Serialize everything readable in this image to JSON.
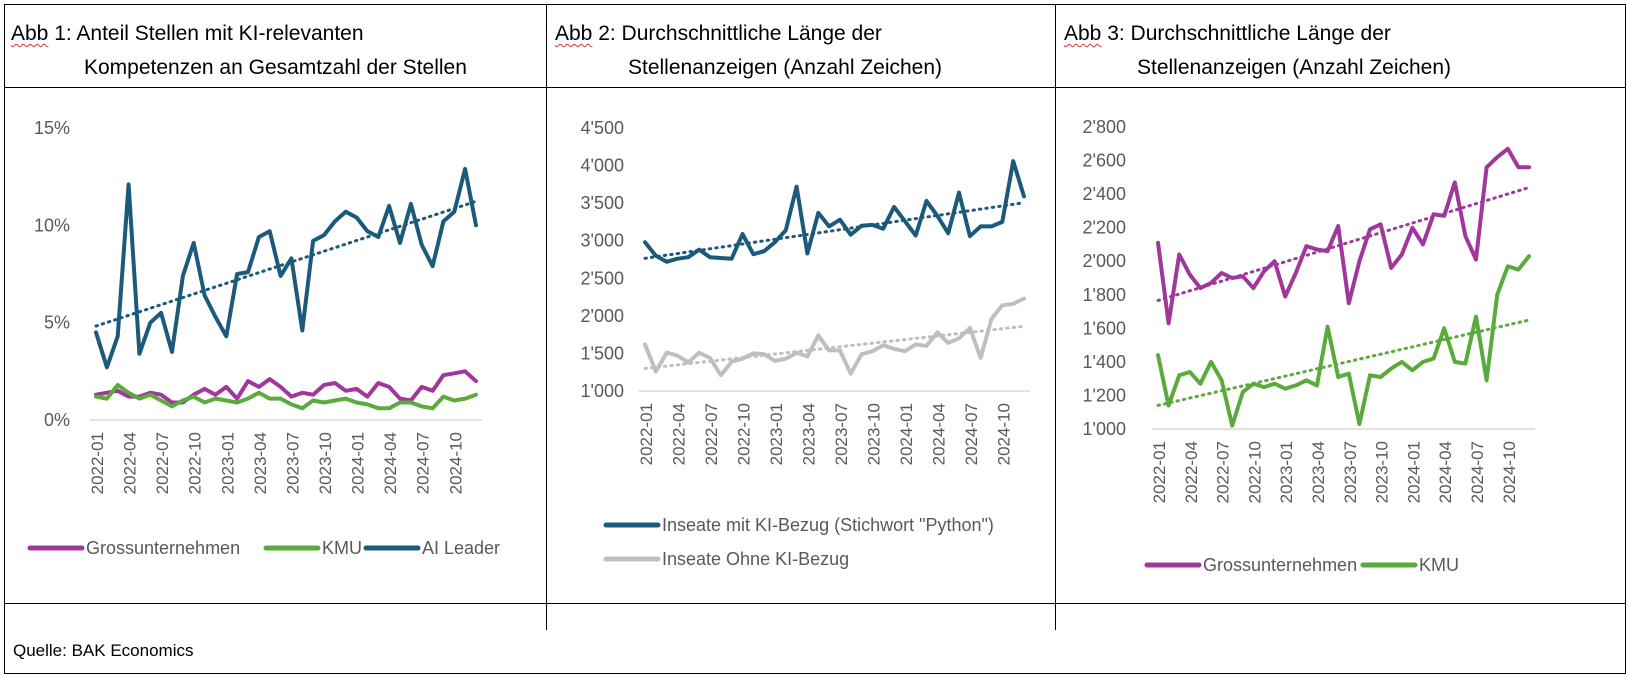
{
  "source": "Quelle: BAK Economics",
  "panels": [
    {
      "abb": "Abb",
      "title_rest_1": " 1: Anteil Stellen mit KI-relevanten",
      "title_line_2": "Kompetenzen an Gesamtzahl der Stellen"
    },
    {
      "abb": "Abb",
      "title_rest_1": " 2: Durchschnittliche Länge der",
      "title_line_2": "Stellenanzeigen (Anzahl Zeichen)"
    },
    {
      "abb": "Abb",
      "title_rest_1": " 3: Durchschnittliche Länge der",
      "title_line_2": "Stellenanzeigen (Anzahl Zeichen)"
    }
  ],
  "colors": {
    "purple": "#a1379b",
    "green": "#5aab3c",
    "teal": "#1b5a7a",
    "gray": "#bfbfbf",
    "axis": "#d9d9d9",
    "text": "#595959"
  },
  "chart_data": [
    {
      "type": "line",
      "title": "Abb 1: Anteil Stellen mit KI-relevanten Kompetenzen an Gesamtzahl der Stellen",
      "ylim": [
        0,
        15
      ],
      "yticks": [
        0,
        5,
        10,
        15
      ],
      "ytick_labels": [
        "0%",
        "5%",
        "10%",
        "15%"
      ],
      "xtick_labels": [
        "2022-01",
        "2022-04",
        "2022-07",
        "2022-10",
        "2023-01",
        "2023-04",
        "2023-07",
        "2023-10",
        "2024-01",
        "2024-04",
        "2024-07",
        "2024-10"
      ],
      "legend_position": "bottom",
      "grid": false,
      "series": [
        {
          "name": "Grossunternehmen",
          "color": "#a1379b",
          "values": [
            1.3,
            1.4,
            1.5,
            1.2,
            1.2,
            1.4,
            1.3,
            0.9,
            0.9,
            1.3,
            1.6,
            1.3,
            1.7,
            1.1,
            2.0,
            1.7,
            2.1,
            1.7,
            1.2,
            1.4,
            1.3,
            1.8,
            1.9,
            1.5,
            1.6,
            1.2,
            1.9,
            1.7,
            1.1,
            1.0,
            1.7,
            1.5,
            2.3,
            2.4,
            2.5,
            2.0
          ],
          "trend": false
        },
        {
          "name": "KMU",
          "color": "#5aab3c",
          "values": [
            1.2,
            1.1,
            1.8,
            1.4,
            1.1,
            1.3,
            1.0,
            0.7,
            1.0,
            1.2,
            0.9,
            1.1,
            1.0,
            0.9,
            1.1,
            1.4,
            1.1,
            1.1,
            0.8,
            0.6,
            1.0,
            0.9,
            1.0,
            1.1,
            0.9,
            0.8,
            0.6,
            0.6,
            0.9,
            0.9,
            0.7,
            0.6,
            1.2,
            1.0,
            1.1,
            1.3
          ],
          "trend": false
        },
        {
          "name": "AI Leader",
          "color": "#1b5a7a",
          "values": [
            4.5,
            2.7,
            4.3,
            12.1,
            3.4,
            5.0,
            5.5,
            3.5,
            7.4,
            9.1,
            6.4,
            5.3,
            4.3,
            7.5,
            7.6,
            9.4,
            9.7,
            7.4,
            8.3,
            4.6,
            9.2,
            9.5,
            10.2,
            10.7,
            10.4,
            9.7,
            9.4,
            11.0,
            9.1,
            11.1,
            9.0,
            7.9,
            10.2,
            10.7,
            12.9,
            10.0
          ],
          "trend": true
        }
      ]
    },
    {
      "type": "line",
      "title": "Abb 2: Durchschnittliche Länge der Stellenanzeigen (Anzahl Zeichen)",
      "ylim": [
        1000,
        4500
      ],
      "yticks": [
        1000,
        1500,
        2000,
        2500,
        3000,
        3500,
        4000,
        4500
      ],
      "ytick_labels": [
        "1'000",
        "1'500",
        "2'000",
        "2'500",
        "3'000",
        "3'500",
        "4'000",
        "4'500"
      ],
      "xtick_labels": [
        "2022-01",
        "2022-04",
        "2022-07",
        "2022-10",
        "2023-01",
        "2023-04",
        "2023-07",
        "2023-10",
        "2024-01",
        "2024-04",
        "2024-07",
        "2024-10"
      ],
      "legend_position": "bottom",
      "grid": false,
      "series": [
        {
          "name": "Inseate mit KI-Bezug (Stichwort \"Python\")",
          "color": "#1b5a7a",
          "values": [
            2980,
            2800,
            2720,
            2760,
            2780,
            2880,
            2780,
            2770,
            2760,
            3090,
            2820,
            2860,
            2980,
            3140,
            3720,
            2830,
            3370,
            3190,
            3280,
            3080,
            3200,
            3210,
            3160,
            3450,
            3260,
            3070,
            3530,
            3330,
            3100,
            3640,
            3060,
            3190,
            3190,
            3250,
            4060,
            3590
          ],
          "trend": true
        },
        {
          "name": "Inseate Ohne KI-Bezug",
          "color": "#bfbfbf",
          "values": [
            1620,
            1260,
            1510,
            1470,
            1380,
            1510,
            1440,
            1210,
            1390,
            1430,
            1500,
            1490,
            1400,
            1430,
            1510,
            1460,
            1740,
            1540,
            1540,
            1230,
            1490,
            1530,
            1610,
            1560,
            1530,
            1620,
            1600,
            1780,
            1640,
            1700,
            1840,
            1440,
            1960,
            2140,
            2160,
            2230
          ],
          "trend": true
        }
      ]
    },
    {
      "type": "line",
      "title": "Abb 3: Durchschnittliche Länge der Stellenanzeigen (Anzahl Zeichen)",
      "ylim": [
        1000,
        2800
      ],
      "yticks": [
        1000,
        1200,
        1400,
        1600,
        1800,
        2000,
        2200,
        2400,
        2600,
        2800
      ],
      "ytick_labels": [
        "1'000",
        "1'200",
        "1'400",
        "1'600",
        "1'800",
        "2'000",
        "2'200",
        "2'400",
        "2'600",
        "2'800"
      ],
      "xtick_labels": [
        "2022-01",
        "2022-04",
        "2022-07",
        "2022-10",
        "2023-01",
        "2023-04",
        "2023-07",
        "2023-10",
        "2024-01",
        "2024-04",
        "2024-07",
        "2024-10"
      ],
      "legend_position": "bottom",
      "grid": false,
      "series": [
        {
          "name": "Grossunternehmen",
          "color": "#a1379b",
          "values": [
            2110,
            1630,
            2040,
            1920,
            1840,
            1870,
            1930,
            1900,
            1910,
            1840,
            1940,
            2000,
            1790,
            1930,
            2090,
            2070,
            2060,
            2210,
            1750,
            2000,
            2190,
            2220,
            1960,
            2040,
            2200,
            2100,
            2280,
            2270,
            2470,
            2150,
            2010,
            2560,
            2620,
            2670,
            2560,
            2560
          ],
          "trend": true
        },
        {
          "name": "KMU",
          "color": "#5aab3c",
          "values": [
            1440,
            1140,
            1320,
            1340,
            1270,
            1400,
            1290,
            1020,
            1220,
            1270,
            1250,
            1270,
            1240,
            1260,
            1290,
            1260,
            1610,
            1310,
            1330,
            1030,
            1320,
            1310,
            1360,
            1400,
            1350,
            1400,
            1420,
            1600,
            1400,
            1390,
            1670,
            1290,
            1800,
            1970,
            1950,
            2030
          ],
          "trend": true
        }
      ]
    }
  ]
}
